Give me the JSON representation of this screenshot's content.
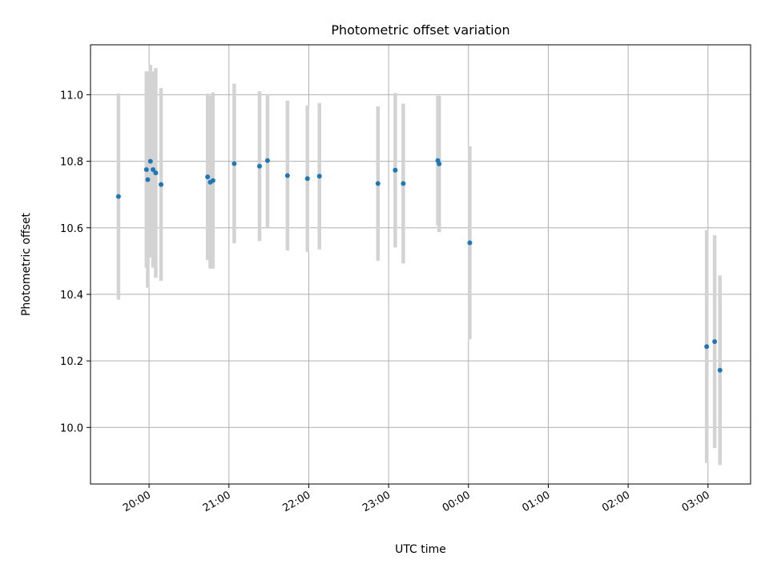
{
  "chart_data": {
    "type": "scatter",
    "title": "Photometric offset variation",
    "xlabel": "UTC time",
    "ylabel": "Photometric offset",
    "grid": true,
    "xlim": [
      "19:16",
      "03:32"
    ],
    "ylim": [
      9.83,
      11.15
    ],
    "x_ticks": [
      "20:00",
      "21:00",
      "22:00",
      "23:00",
      "00:00",
      "01:00",
      "02:00",
      "03:00"
    ],
    "y_ticks": [
      "10.0",
      "10.2",
      "10.4",
      "10.6",
      "10.8",
      "11.0"
    ],
    "colors": {
      "point": "#1f77b4",
      "errorbar": "#d3d3d3",
      "grid": "#b0b0b0"
    },
    "points": [
      {
        "x": "19:37",
        "y": 10.694,
        "yerr": 0.31
      },
      {
        "x": "19:58",
        "y": 10.775,
        "yerr": 0.295
      },
      {
        "x": "19:59",
        "y": 10.745,
        "yerr": 0.325
      },
      {
        "x": "20:01",
        "y": 10.8,
        "yerr": 0.29
      },
      {
        "x": "20:03",
        "y": 10.775,
        "yerr": 0.295
      },
      {
        "x": "20:05",
        "y": 10.765,
        "yerr": 0.315
      },
      {
        "x": "20:09",
        "y": 10.73,
        "yerr": 0.29
      },
      {
        "x": "20:44",
        "y": 10.753,
        "yerr": 0.25
      },
      {
        "x": "20:46",
        "y": 10.737,
        "yerr": 0.26
      },
      {
        "x": "20:48",
        "y": 10.742,
        "yerr": 0.265
      },
      {
        "x": "21:04",
        "y": 10.793,
        "yerr": 0.24
      },
      {
        "x": "21:23",
        "y": 10.785,
        "yerr": 0.225
      },
      {
        "x": "21:29",
        "y": 10.802,
        "yerr": 0.2
      },
      {
        "x": "21:44",
        "y": 10.757,
        "yerr": 0.225
      },
      {
        "x": "21:59",
        "y": 10.748,
        "yerr": 0.22
      },
      {
        "x": "22:08",
        "y": 10.755,
        "yerr": 0.22
      },
      {
        "x": "22:52",
        "y": 10.733,
        "yerr": 0.232
      },
      {
        "x": "23:05",
        "y": 10.773,
        "yerr": 0.232
      },
      {
        "x": "23:11",
        "y": 10.733,
        "yerr": 0.24
      },
      {
        "x": "23:37",
        "y": 10.802,
        "yerr": 0.195
      },
      {
        "x": "23:38",
        "y": 10.792,
        "yerr": 0.205
      },
      {
        "x": "00:01",
        "y": 10.555,
        "yerr": 0.29
      },
      {
        "x": "02:59",
        "y": 10.243,
        "yerr": 0.35
      },
      {
        "x": "03:05",
        "y": 10.258,
        "yerr": 0.32
      },
      {
        "x": "03:09",
        "y": 10.172,
        "yerr": 0.285
      }
    ]
  }
}
